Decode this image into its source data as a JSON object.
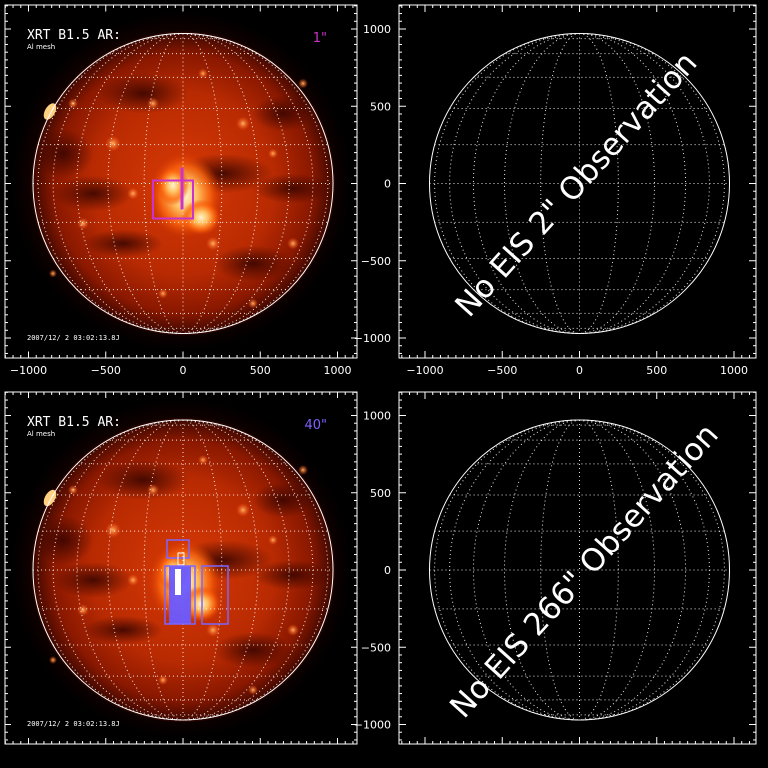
{
  "panels": [
    {
      "id": "top-left",
      "label_main": "XRT B1.5 AR:",
      "label_sub": "Al mesh",
      "timestamp": "2007/12/ 2 03:02:13.8J",
      "exposure": "1\"",
      "exposure_color": "#cc33cc",
      "show_xray": true,
      "show_xticks": true,
      "overlay": "fov-1",
      "overlay_color": "#cc33cc"
    },
    {
      "id": "top-right",
      "no_obs_text": "No EIS 2\" Observation",
      "show_xray": false,
      "show_xticks": true,
      "show_yticks": true
    },
    {
      "id": "bottom-left",
      "label_main": "XRT B1.5 AR:",
      "label_sub": "Al mesh",
      "timestamp": "2007/12/ 2 03:02:13.8J",
      "exposure": "40\"",
      "exposure_color": "#8060ff",
      "show_xray": true,
      "show_xticks": false,
      "overlay": "fov-40",
      "overlay_color": "#7a66ff"
    },
    {
      "id": "bottom-right",
      "no_obs_text": "No EIS 266\" Observation",
      "show_xray": false,
      "show_xticks": false,
      "show_yticks": true
    }
  ],
  "axis": {
    "x_tick_labels": [
      "−1000",
      "−500",
      "0",
      "500",
      "1000"
    ],
    "y_tick_labels": [
      "1000",
      "500",
      "0",
      "−500",
      "−1000"
    ],
    "x_values": [
      -1000,
      -500,
      0,
      500,
      1000
    ],
    "y_values": [
      1000,
      500,
      0,
      -500,
      -1000
    ]
  },
  "colors": {
    "background": "#000000",
    "disk_limb": "#ffffff",
    "grid": "#ffffff",
    "sun_hot": "#fff2c0",
    "sun_mid": "#ff5a10",
    "sun_dark": "#3a0500"
  }
}
